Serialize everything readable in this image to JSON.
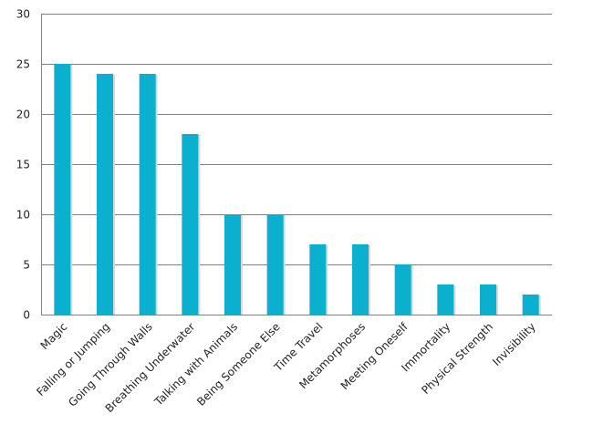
{
  "chart_data": {
    "type": "bar",
    "title": "",
    "xlabel": "",
    "ylabel": "",
    "categories": [
      "Magic",
      "Falling or Jumping",
      "Going Through Walls",
      "Breathing Underwater",
      "Talking with Animals",
      "Being Someone Else",
      "Time Travel",
      "Metamorphoses",
      "Meeting Oneself",
      "Immortality",
      "Physical Strength",
      "Invisibility"
    ],
    "values": [
      25,
      24,
      24,
      18,
      10,
      10,
      7,
      7,
      5,
      3,
      3,
      2
    ],
    "ylim": [
      0,
      30
    ],
    "yticks": [
      0,
      5,
      10,
      15,
      20,
      25,
      30
    ],
    "grid": true,
    "legend": null,
    "colors": {
      "bar": "#0bb0cf",
      "grid": "#808080",
      "axis": "#808080"
    }
  }
}
